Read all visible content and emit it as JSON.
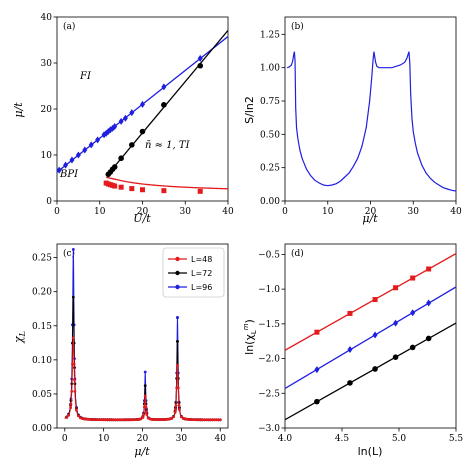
{
  "colors": {
    "red": "#e41a1c",
    "black": "#000000",
    "blue": "#1f1fe0"
  },
  "chart_data": [
    {
      "panel_label": "(a)",
      "type": "line",
      "xlabel": "U/t",
      "ylabel": "μ/t",
      "xlim": [
        0,
        40
      ],
      "ylim": [
        0,
        40
      ],
      "xticks": [
        0,
        10,
        20,
        30,
        40
      ],
      "yticks": [
        0,
        10,
        20,
        30,
        40
      ],
      "annotations": [
        "FI",
        "n̄ ≈ 1, TI",
        "BPI"
      ],
      "series": [
        {
          "color": "blue",
          "marker": "diamond",
          "x": [
            0.5,
            2,
            3.5,
            5,
            6.5,
            8,
            9.5,
            11,
            11.5,
            12,
            12.5,
            13,
            13.5,
            15,
            16,
            17.5,
            20,
            25,
            33.5
          ],
          "y": [
            6.7,
            7.8,
            8.9,
            10.0,
            11.1,
            12.2,
            13.3,
            14.4,
            14.7,
            15.1,
            15.5,
            15.8,
            16.2,
            17.3,
            18.0,
            19.2,
            21.0,
            24.8,
            31.0
          ]
        },
        {
          "color": "black",
          "marker": "circle",
          "x": [
            12,
            12.5,
            13,
            13.5,
            15,
            17.5,
            20,
            25,
            33.5
          ],
          "y": [
            5.8,
            6.3,
            6.9,
            7.4,
            9.3,
            12.2,
            15.1,
            20.9,
            29.4
          ]
        },
        {
          "color": "red",
          "marker": "square",
          "x": [
            11.5,
            12,
            12.5,
            13,
            13.5,
            15,
            17.5,
            20,
            25,
            33.5
          ],
          "y": [
            3.9,
            3.7,
            3.55,
            3.4,
            3.25,
            3.0,
            2.7,
            2.45,
            2.25,
            2.1
          ]
        }
      ]
    },
    {
      "panel_label": "(b)",
      "type": "line",
      "xlabel": "μ/t",
      "ylabel": "S/ln2",
      "xlim": [
        0,
        40
      ],
      "ylim": [
        0,
        1.38
      ],
      "xticks": [
        0,
        10,
        20,
        30,
        40
      ],
      "yticks": [
        0.0,
        0.25,
        0.5,
        0.75,
        1.0,
        1.25
      ],
      "ytick_labels": [
        "0.00",
        "0.25",
        "0.50",
        "0.75",
        "1.00",
        "1.25"
      ],
      "series": [
        {
          "color": "blue",
          "x": [
            0.5,
            1.0,
            1.5,
            1.8,
            2.0,
            2.2,
            2.35,
            2.5,
            2.7,
            3.0,
            3.5,
            4,
            5,
            6,
            7,
            8,
            9,
            10,
            11,
            12,
            13,
            14,
            15,
            16,
            17,
            18,
            19,
            19.8,
            20.3,
            20.6,
            20.8,
            21.0,
            21.2,
            21.5,
            22,
            23,
            24,
            25,
            26,
            27,
            28,
            28.5,
            28.8,
            29.0,
            29.2,
            29.4,
            29.7,
            30,
            30.5,
            31,
            32,
            33,
            34,
            35,
            36,
            37,
            38,
            39,
            40
          ],
          "y": [
            1.0,
            1.005,
            1.02,
            1.05,
            1.09,
            1.12,
            1.05,
            0.7,
            0.55,
            0.47,
            0.38,
            0.32,
            0.24,
            0.19,
            0.155,
            0.135,
            0.12,
            0.115,
            0.12,
            0.13,
            0.15,
            0.18,
            0.21,
            0.26,
            0.32,
            0.41,
            0.55,
            0.75,
            0.93,
            1.06,
            1.12,
            1.08,
            1.04,
            1.01,
            1.0,
            1.0,
            1.0,
            1.0,
            1.01,
            1.02,
            1.04,
            1.07,
            1.1,
            1.12,
            1.03,
            0.8,
            0.62,
            0.52,
            0.43,
            0.36,
            0.27,
            0.21,
            0.17,
            0.14,
            0.12,
            0.1,
            0.09,
            0.08,
            0.075
          ]
        }
      ]
    },
    {
      "panel_label": "(c)",
      "type": "line",
      "xlabel": "μ/t",
      "ylabel": "χL",
      "xlim": [
        -2,
        42
      ],
      "ylim": [
        0,
        0.27
      ],
      "xticks": [
        0,
        10,
        20,
        30,
        40
      ],
      "yticks": [
        0.0,
        0.05,
        0.1,
        0.15,
        0.2,
        0.25
      ],
      "ytick_labels": [
        "0.00",
        "0.05",
        "0.10",
        "0.15",
        "0.20",
        "0.25"
      ],
      "legend_position": "top-right",
      "peaks": [
        {
          "x": 2.2,
          "heights": [
            0.12,
            0.18,
            0.25
          ],
          "width": 0.55
        },
        {
          "x": 20.7,
          "heights": [
            0.035,
            0.05,
            0.07
          ],
          "width": 0.4
        },
        {
          "x": 29.0,
          "heights": [
            0.08,
            0.115,
            0.15
          ],
          "width": 0.45
        }
      ],
      "series": [
        {
          "name": "L=48",
          "color": "red"
        },
        {
          "name": "L=72",
          "color": "black"
        },
        {
          "name": "L=96",
          "color": "blue"
        }
      ]
    },
    {
      "panel_label": "(d)",
      "type": "line",
      "xlabel": "ln(L)",
      "ylabel": "ln(χLm)",
      "xlim": [
        4.0,
        5.5
      ],
      "ylim": [
        -3.0,
        -0.35
      ],
      "xticks": [
        4.0,
        4.5,
        5.0,
        5.5
      ],
      "xtick_labels": [
        "4.0",
        "4.5",
        "5.0",
        "5.5"
      ],
      "yticks": [
        -3.0,
        -2.5,
        -2.0,
        -1.5,
        -1.0,
        -0.5
      ],
      "ytick_labels": [
        "−3.0",
        "−2.5",
        "−2.0",
        "−1.5",
        "−1.0",
        "−0.5"
      ],
      "series": [
        {
          "color": "red",
          "marker": "square",
          "x": [
            4.28,
            4.57,
            4.79,
            4.97,
            5.12,
            5.26
          ],
          "y": [
            -1.62,
            -1.35,
            -1.15,
            -0.98,
            -0.84,
            -0.71
          ]
        },
        {
          "color": "blue",
          "marker": "diamond",
          "x": [
            4.28,
            4.57,
            4.79,
            4.97,
            5.12,
            5.26
          ],
          "y": [
            -2.16,
            -1.87,
            -1.66,
            -1.49,
            -1.34,
            -1.2
          ]
        },
        {
          "color": "black",
          "marker": "circle",
          "x": [
            4.28,
            4.57,
            4.79,
            4.97,
            5.12,
            5.26
          ],
          "y": [
            -2.62,
            -2.35,
            -2.15,
            -1.98,
            -1.84,
            -1.71
          ]
        }
      ]
    }
  ]
}
